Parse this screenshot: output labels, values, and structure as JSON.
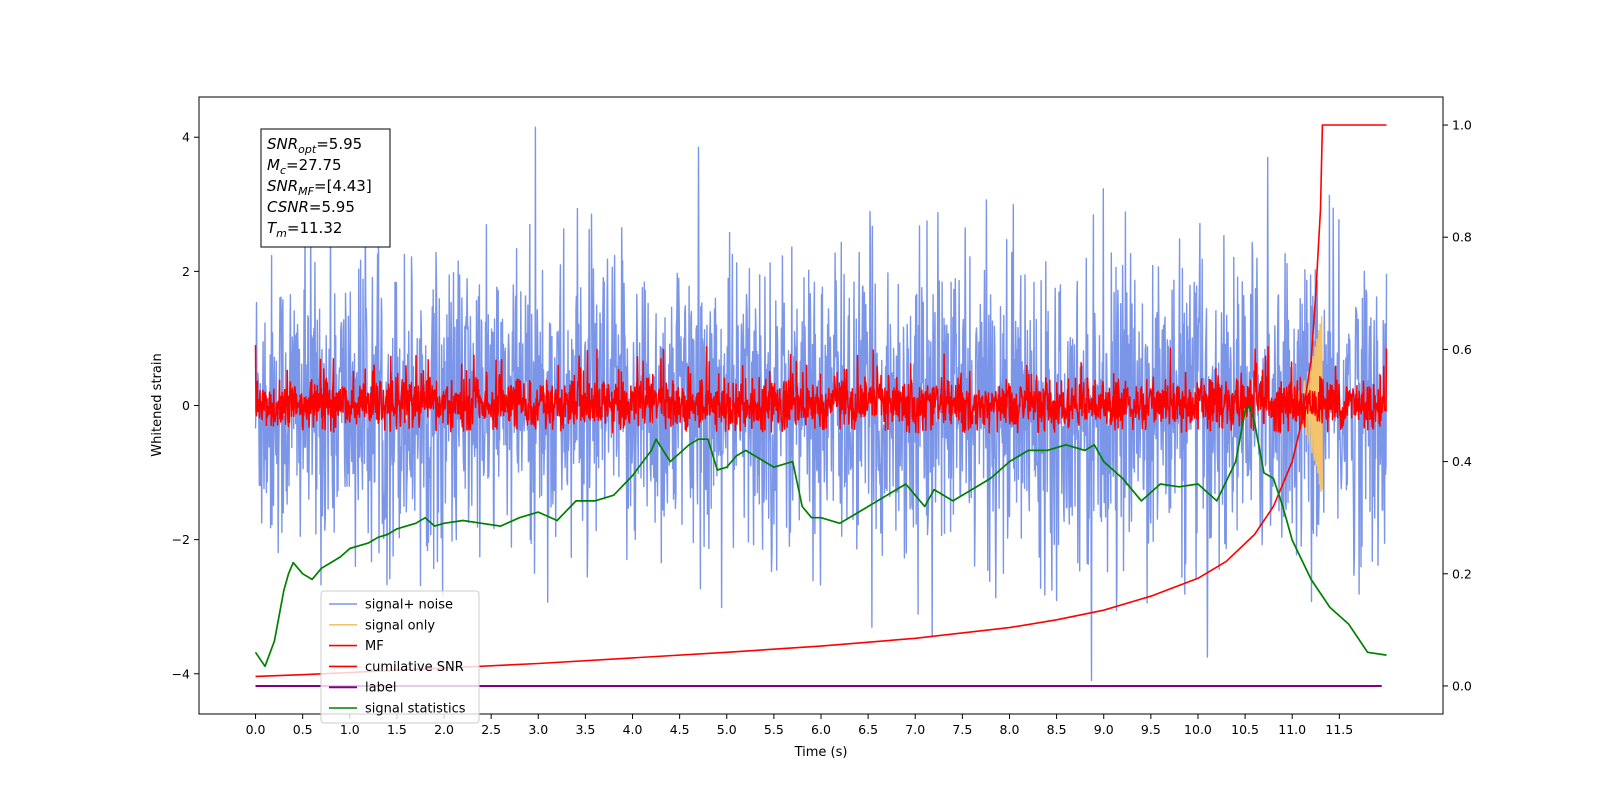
{
  "chart_data": {
    "type": "line",
    "xlabel": "Time (s)",
    "ylabel": "Whitened strain",
    "xlim": [
      -0.6,
      12.6
    ],
    "ylim": [
      -4.6,
      4.6
    ],
    "y2lim": [
      -0.05,
      1.05
    ],
    "grid": false,
    "legend_position": "lower-left",
    "x_ticks": [
      0.0,
      0.5,
      1.0,
      1.5,
      2.0,
      2.5,
      3.0,
      3.5,
      4.0,
      4.5,
      5.0,
      5.5,
      6.0,
      6.5,
      7.0,
      7.5,
      8.0,
      8.5,
      9.0,
      9.5,
      10.0,
      10.5,
      11.0,
      11.5
    ],
    "x_tick_labels": [
      "0.0",
      "0.5",
      "1.0",
      "1.5",
      "2.0",
      "2.5",
      "3.0",
      "3.5",
      "4.0",
      "4.5",
      "5.0",
      "5.5",
      "6.0",
      "6.5",
      "7.0",
      "7.5",
      "8.0",
      "8.5",
      "9.0",
      "9.5",
      "10.0",
      "10.5",
      "11.0",
      "11.5"
    ],
    "y_ticks": [
      4,
      2,
      0,
      -2,
      -4
    ],
    "y_tick_labels": [
      "4",
      "2",
      "0",
      "−2",
      "−4"
    ],
    "y2_ticks": [
      1.0,
      0.8,
      0.6,
      0.4,
      0.2,
      0.0
    ],
    "y2_tick_labels": [
      "1.0",
      "0.8",
      "0.6",
      "0.4",
      "0.2",
      "0.0"
    ],
    "annotation": {
      "lines": [
        {
          "base": "SNR",
          "sub": "opt",
          "value": "=5.95"
        },
        {
          "base": "M",
          "sub": "c",
          "value": "=27.75"
        },
        {
          "base": "SNR",
          "sub": "MF",
          "value": "=[4.43]"
        },
        {
          "base": "CSNR",
          "sub": "",
          "value": "=5.95"
        },
        {
          "base": "T",
          "sub": "m",
          "value": "=11.32"
        }
      ]
    },
    "series": [
      {
        "name": "signal+ noise",
        "color": "#7b95e8",
        "kind": "noise",
        "x_range": [
          0.0,
          12.0
        ],
        "envelope_upper": 2.5,
        "envelope_lower": -2.6,
        "peaks": [
          [
            2.97,
            4.15
          ],
          [
            8.87,
            -4.1
          ],
          [
            10.74,
            3.7
          ],
          [
            4.7,
            3.85
          ],
          [
            10.1,
            -3.75
          ]
        ]
      },
      {
        "name": "signal only",
        "color": "#f5c36b",
        "kind": "chirp",
        "x_range": [
          10.9,
          11.32
        ],
        "peak_amplitude": 1.4
      },
      {
        "name": "MF",
        "color": "#ff0000",
        "kind": "noise",
        "x_range": [
          0.0,
          12.0
        ],
        "envelope_upper": 0.45,
        "envelope_lower": -0.35,
        "start_value": 0.9,
        "end_value": 0.85
      },
      {
        "name": "cumilative SNR",
        "color": "#ff0000",
        "axis": "right",
        "x": [
          0.0,
          0.5,
          1.0,
          2.0,
          3.0,
          4.0,
          5.0,
          6.0,
          7.0,
          8.0,
          8.5,
          9.0,
          9.5,
          10.0,
          10.3,
          10.6,
          10.8,
          11.0,
          11.1,
          11.2,
          11.25,
          11.3,
          11.32,
          11.5,
          12.0
        ],
        "y": [
          0.017,
          0.02,
          0.024,
          0.032,
          0.04,
          0.05,
          0.06,
          0.071,
          0.085,
          0.104,
          0.118,
          0.135,
          0.16,
          0.192,
          0.222,
          0.27,
          0.32,
          0.4,
          0.47,
          0.58,
          0.7,
          0.85,
          1.0,
          1.0,
          1.0
        ]
      },
      {
        "name": "label",
        "color": "#800080",
        "axis": "right",
        "x": [
          0.0,
          11.95
        ],
        "y": [
          0.0,
          0.0
        ]
      },
      {
        "name": "signal statistics",
        "color": "#008000",
        "axis": "right",
        "x": [
          0.0,
          0.1,
          0.2,
          0.3,
          0.35,
          0.4,
          0.5,
          0.6,
          0.7,
          0.8,
          0.9,
          1.0,
          1.1,
          1.2,
          1.3,
          1.4,
          1.5,
          1.6,
          1.7,
          1.8,
          1.9,
          2.0,
          2.2,
          2.4,
          2.6,
          2.8,
          3.0,
          3.2,
          3.4,
          3.6,
          3.8,
          4.0,
          4.2,
          4.25,
          4.4,
          4.6,
          4.7,
          4.8,
          4.9,
          5.0,
          5.1,
          5.2,
          5.4,
          5.5,
          5.7,
          5.8,
          5.9,
          6.0,
          6.2,
          6.4,
          6.6,
          6.8,
          6.9,
          7.0,
          7.1,
          7.2,
          7.4,
          7.6,
          7.8,
          8.0,
          8.2,
          8.4,
          8.6,
          8.8,
          8.9,
          9.0,
          9.2,
          9.4,
          9.6,
          9.8,
          10.0,
          10.2,
          10.4,
          10.5,
          10.55,
          10.6,
          10.7,
          10.8,
          10.9,
          11.0,
          11.2,
          11.4,
          11.6,
          11.8,
          12.0
        ],
        "y": [
          0.06,
          0.035,
          0.08,
          0.17,
          0.2,
          0.22,
          0.2,
          0.19,
          0.21,
          0.22,
          0.23,
          0.245,
          0.25,
          0.255,
          0.265,
          0.27,
          0.28,
          0.285,
          0.29,
          0.3,
          0.285,
          0.29,
          0.295,
          0.29,
          0.285,
          0.3,
          0.31,
          0.295,
          0.33,
          0.33,
          0.34,
          0.375,
          0.42,
          0.44,
          0.4,
          0.43,
          0.44,
          0.44,
          0.385,
          0.39,
          0.41,
          0.42,
          0.4,
          0.39,
          0.4,
          0.32,
          0.3,
          0.3,
          0.29,
          0.31,
          0.33,
          0.35,
          0.36,
          0.34,
          0.32,
          0.35,
          0.33,
          0.35,
          0.37,
          0.4,
          0.42,
          0.42,
          0.43,
          0.42,
          0.43,
          0.4,
          0.37,
          0.33,
          0.36,
          0.355,
          0.36,
          0.33,
          0.4,
          0.49,
          0.5,
          0.47,
          0.38,
          0.37,
          0.32,
          0.26,
          0.19,
          0.14,
          0.11,
          0.06,
          0.055
        ]
      }
    ]
  }
}
